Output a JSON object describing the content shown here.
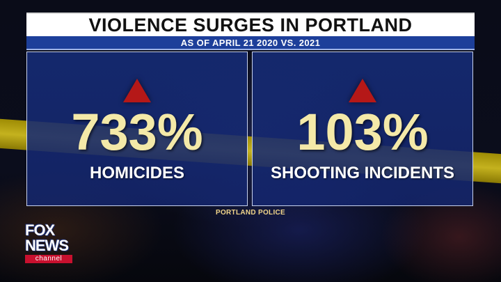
{
  "header": {
    "title": "VIOLENCE SURGES IN PORTLAND",
    "subtitle": "AS OF APRIL 21 2020 VS. 2021"
  },
  "stats": [
    {
      "value": "733%",
      "label": "HOMICIDES",
      "direction": "up-arrow"
    },
    {
      "value": "103%",
      "label": "SHOOTING INCIDENTS",
      "direction": "up-arrow"
    }
  ],
  "source": "PORTLAND POLICE",
  "logo": {
    "line1": "FOX",
    "line2": "NEWS",
    "line3": "channel"
  },
  "colors": {
    "title_bg": "#ffffff",
    "subtitle_bg": "#1d3f9a",
    "panel_bg": "#16307a",
    "value_text": "#f4e9a8",
    "arrow": "#b51818",
    "source_text": "#f1d58a"
  }
}
